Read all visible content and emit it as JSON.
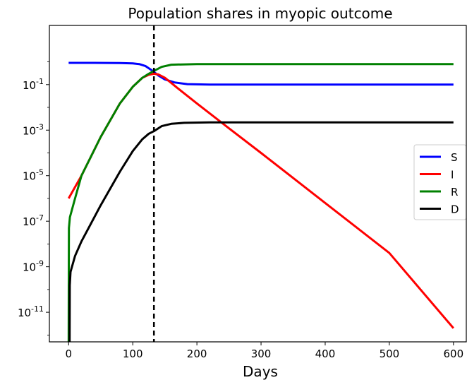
{
  "chart_data": {
    "type": "line",
    "title": "Population shares in myopic outcome",
    "xlabel": "Days",
    "ylabel": "",
    "xlim": [
      -30,
      620
    ],
    "ylim_log10": [
      -12.3,
      1.6
    ],
    "y_scale": "log",
    "x_ticks": [
      0,
      100,
      200,
      300,
      400,
      500,
      600
    ],
    "y_ticks": [
      {
        "exp": -1,
        "base": "10",
        "label": "-1"
      },
      {
        "exp": -3,
        "base": "10",
        "label": "-3"
      },
      {
        "exp": -5,
        "base": "10",
        "label": "-5"
      },
      {
        "exp": -7,
        "base": "10",
        "label": "-7"
      },
      {
        "exp": -9,
        "base": "10",
        "label": "-9"
      },
      {
        "exp": -11,
        "base": "10",
        "label": "-11"
      }
    ],
    "vline": {
      "x": 133,
      "style": "dashed",
      "color": "#000000"
    },
    "legend_position": "center-right",
    "series": [
      {
        "name": "S",
        "color": "#0000ff",
        "points": [
          [
            0,
            0.9
          ],
          [
            40,
            0.9
          ],
          [
            80,
            0.89
          ],
          [
            100,
            0.86
          ],
          [
            110,
            0.8
          ],
          [
            120,
            0.65
          ],
          [
            130,
            0.42
          ],
          [
            140,
            0.25
          ],
          [
            150,
            0.17
          ],
          [
            165,
            0.125
          ],
          [
            185,
            0.105
          ],
          [
            220,
            0.101
          ],
          [
            300,
            0.1
          ],
          [
            600,
            0.1
          ]
        ]
      },
      {
        "name": "I",
        "color": "#ff0000",
        "points": [
          [
            0,
            1e-06
          ],
          [
            20,
            1e-05
          ],
          [
            50,
            0.0005
          ],
          [
            80,
            0.015
          ],
          [
            100,
            0.08
          ],
          [
            115,
            0.2
          ],
          [
            125,
            0.27
          ],
          [
            133,
            0.3
          ],
          [
            140,
            0.28
          ],
          [
            150,
            0.2
          ],
          [
            170,
            0.07
          ],
          [
            200,
            0.015
          ],
          [
            250,
            0.0012
          ],
          [
            300,
            0.0001
          ],
          [
            400,
            6.3e-07
          ],
          [
            500,
            4e-09
          ],
          [
            600,
            2e-12
          ]
        ]
      },
      {
        "name": "R",
        "color": "#008000",
        "points": [
          [
            0,
            0
          ],
          [
            0.2,
            4e-10
          ],
          [
            0.5,
            5e-08
          ],
          [
            2,
            1.5e-07
          ],
          [
            10,
            1e-06
          ],
          [
            20,
            1e-05
          ],
          [
            50,
            0.0005
          ],
          [
            80,
            0.015
          ],
          [
            100,
            0.08
          ],
          [
            115,
            0.2
          ],
          [
            125,
            0.3
          ],
          [
            133,
            0.4
          ],
          [
            145,
            0.6
          ],
          [
            160,
            0.75
          ],
          [
            200,
            0.8
          ],
          [
            300,
            0.8
          ],
          [
            600,
            0.8
          ]
        ]
      },
      {
        "name": "D",
        "color": "#000000",
        "points": [
          [
            1.5,
            0
          ],
          [
            1.8,
            1.5e-10
          ],
          [
            3,
            6e-10
          ],
          [
            10,
            3e-09
          ],
          [
            20,
            1.3e-08
          ],
          [
            50,
            5e-07
          ],
          [
            80,
            1.5e-05
          ],
          [
            100,
            0.00012
          ],
          [
            115,
            0.0004
          ],
          [
            125,
            0.0007
          ],
          [
            133,
            0.0009
          ],
          [
            145,
            0.0015
          ],
          [
            160,
            0.0019
          ],
          [
            180,
            0.0021
          ],
          [
            220,
            0.0022
          ],
          [
            300,
            0.0022
          ],
          [
            600,
            0.0022
          ]
        ]
      }
    ]
  }
}
